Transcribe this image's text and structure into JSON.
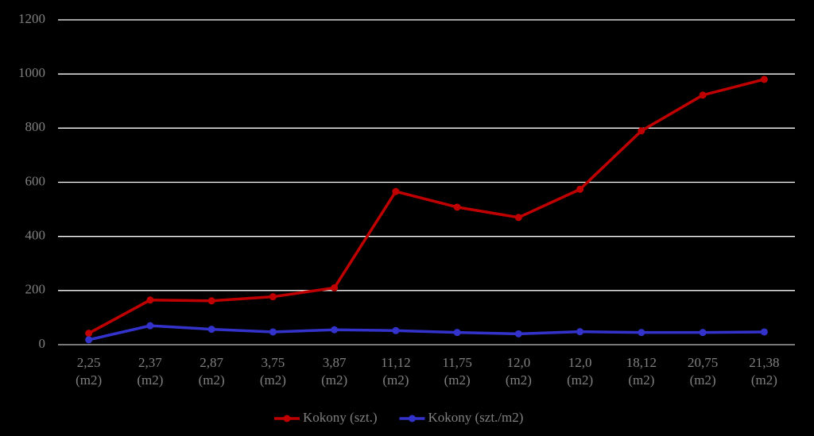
{
  "chart_data": {
    "type": "line",
    "categories": [
      "2,25\n(m2)",
      "2,37\n(m2)",
      "2,87\n(m2)",
      "3,75\n(m2)",
      "3,87\n(m2)",
      "11,12\n(m2)",
      "11,75\n(m2)",
      "12,0\n(m2)",
      "12,0\n(m2)",
      "18,12\n(m2)",
      "20,75\n(m2)",
      "21,38\n(m2)"
    ],
    "series": [
      {
        "name": "Kokony (szt.)",
        "color": "#c00000",
        "values": [
          42,
          165,
          162,
          177,
          210,
          566,
          508,
          470,
          574,
          790,
          922,
          980
        ]
      },
      {
        "name": "Kokony (szt./m2)",
        "color": "#3333cc",
        "values": [
          18,
          70,
          57,
          47,
          55,
          52,
          45,
          40,
          48,
          45,
          45,
          47
        ]
      }
    ],
    "ylim": [
      0,
      1200
    ],
    "yticks": [
      0,
      200,
      400,
      600,
      800,
      1000,
      1200
    ],
    "grid": true,
    "legend": "bottom"
  }
}
